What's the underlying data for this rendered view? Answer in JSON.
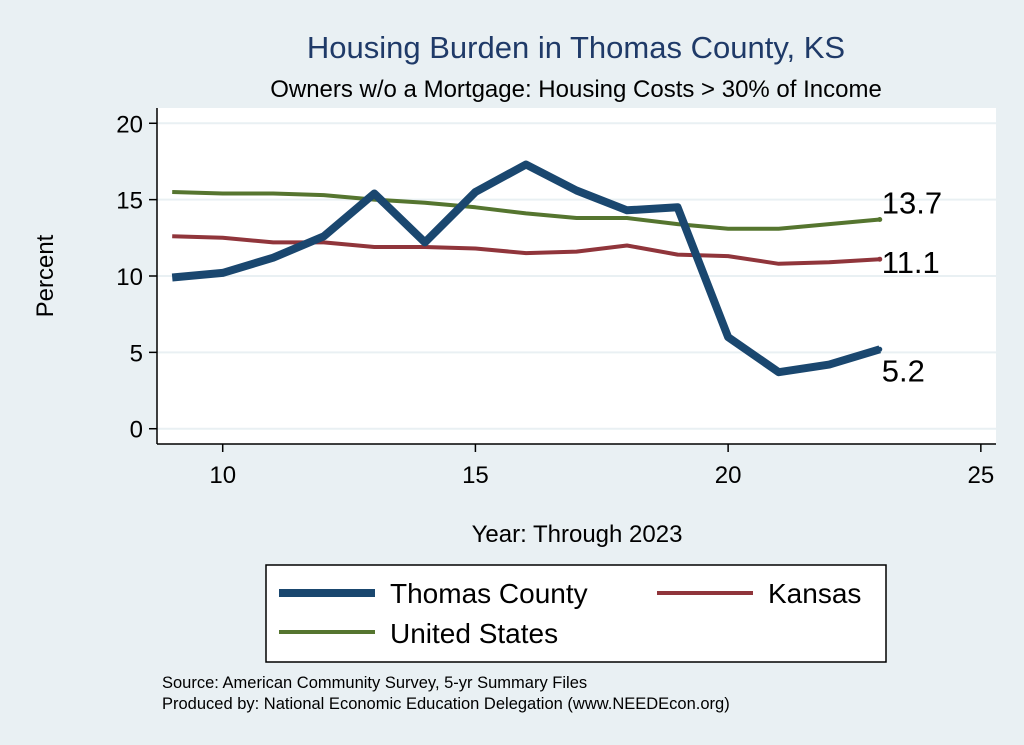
{
  "chart_data": {
    "type": "line",
    "title": "Housing Burden in Thomas County, KS",
    "subtitle": "Owners w/o a Mortgage: Housing Costs > 30% of Income",
    "xlabel": "Year: Through 2023",
    "ylabel": "Percent",
    "xlim": [
      8.7,
      25.3
    ],
    "ylim": [
      -1,
      21
    ],
    "xticks": [
      10,
      15,
      20,
      25
    ],
    "yticks": [
      0,
      5,
      10,
      15,
      20
    ],
    "grid": true,
    "x": [
      9,
      10,
      11,
      12,
      13,
      14,
      15,
      16,
      17,
      18,
      19,
      20,
      21,
      22,
      23
    ],
    "series": [
      {
        "name": "Thomas County",
        "color": "#1a476f",
        "width": 8,
        "values": [
          9.9,
          10.2,
          11.2,
          12.6,
          15.4,
          12.2,
          15.5,
          17.3,
          15.6,
          14.3,
          14.5,
          6.0,
          3.7,
          4.2,
          5.2
        ],
        "end_label": "5.2"
      },
      {
        "name": "Kansas",
        "color": "#90353b",
        "width": 4,
        "values": [
          12.6,
          12.5,
          12.2,
          12.2,
          11.9,
          11.9,
          11.8,
          11.5,
          11.6,
          12.0,
          11.4,
          11.3,
          10.8,
          10.9,
          11.1
        ],
        "end_label": "11.1"
      },
      {
        "name": "United States",
        "color": "#55752f",
        "width": 4,
        "values": [
          15.5,
          15.4,
          15.4,
          15.3,
          15.0,
          14.8,
          14.5,
          14.1,
          13.8,
          13.8,
          13.4,
          13.1,
          13.1,
          13.4,
          13.7
        ],
        "end_label": "13.7"
      }
    ],
    "legend": {
      "position": "bottom",
      "items": [
        "Thomas County",
        "Kansas",
        "United States"
      ]
    },
    "notes": [
      "Source: American Community Survey, 5-yr Summary Files",
      "Produced by: National Economic Education Delegation (www.NEEDEcon.org)"
    ]
  }
}
